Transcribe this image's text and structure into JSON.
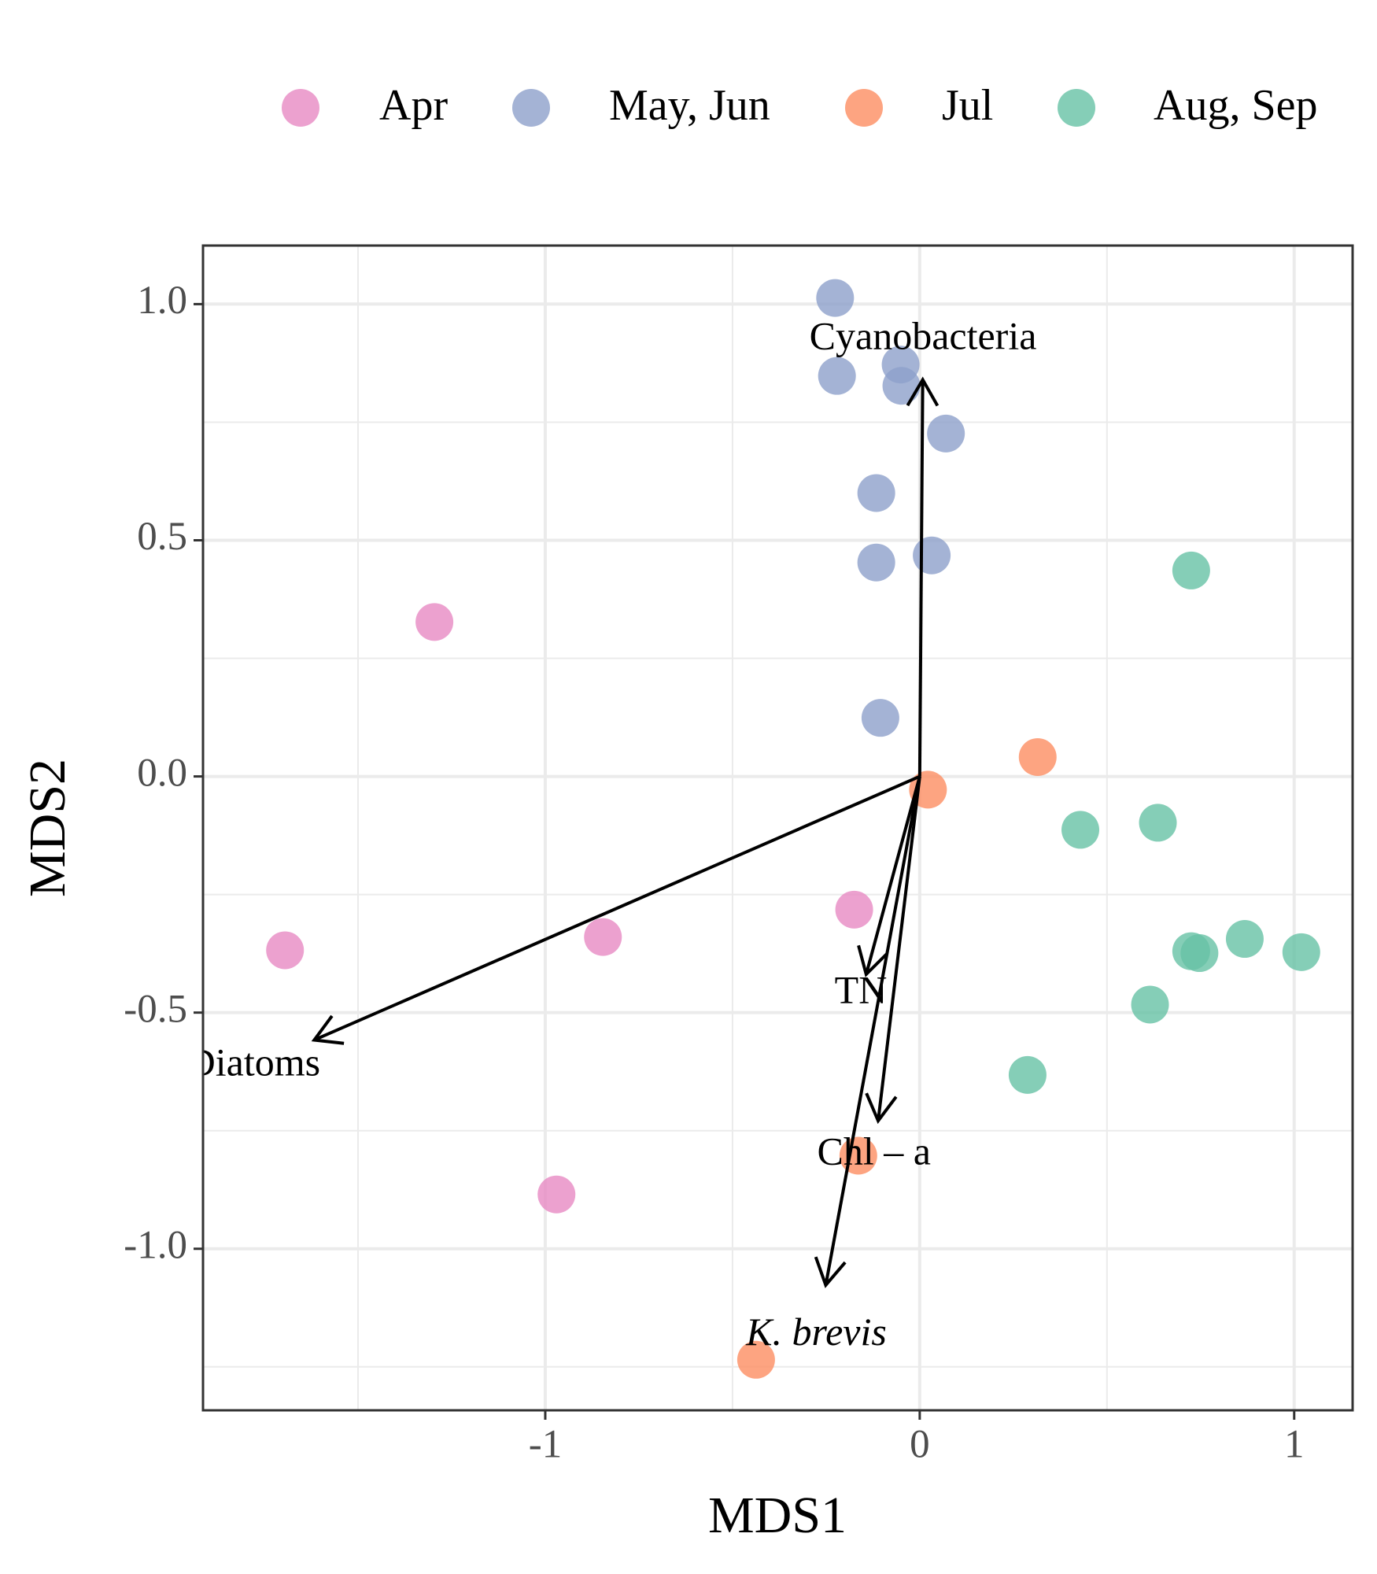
{
  "chart_data": {
    "type": "scatter",
    "x_label": "MDS1",
    "y_label": "MDS2",
    "xlim": [
      -1.914,
      1.156
    ],
    "ylim": [
      -1.342,
      1.124
    ],
    "xticks": [
      -1,
      0,
      1
    ],
    "yticks": [
      {
        "value": -1.0,
        "label": "-1.0"
      },
      {
        "value": -0.5,
        "label": "-0.5"
      },
      {
        "value": 0.0,
        "label": "0.0"
      },
      {
        "value": 0.5,
        "label": "0.5"
      },
      {
        "value": 1.0,
        "label": "1.0"
      }
    ],
    "grid": true,
    "legend": "top",
    "series": [
      {
        "name": "Apr",
        "color": "#e78ac3",
        "x": [
          -1.296,
          -1.695,
          -0.846,
          -0.175,
          -0.97
        ],
        "values": [
          0.327,
          -0.368,
          -0.34,
          -0.282,
          -0.885
        ]
      },
      {
        "name": "May, Jun",
        "color": "#8da0cb",
        "x": [
          -0.226,
          -0.221,
          -0.051,
          -0.049,
          0.07,
          -0.116,
          -0.116,
          0.032,
          -0.105
        ],
        "values": [
          1.013,
          0.848,
          0.872,
          0.827,
          0.726,
          0.6,
          0.453,
          0.468,
          0.124
        ]
      },
      {
        "name": "Jul",
        "color": "#fc8d62",
        "x": [
          0.315,
          0.022,
          -0.164,
          -0.437
        ],
        "values": [
          0.041,
          -0.028,
          -0.803,
          -1.235
        ]
      },
      {
        "name": "Aug, Sep",
        "color": "#66c2a5",
        "x": [
          0.725,
          0.429,
          0.636,
          0.725,
          0.747,
          0.868,
          1.019,
          0.615,
          0.288
        ],
        "values": [
          0.436,
          -0.113,
          -0.098,
          -0.37,
          -0.374,
          -0.344,
          -0.372,
          -0.483,
          -0.632
        ]
      }
    ],
    "vectors": [
      {
        "name": "Cyanobacteria",
        "x": 0.008,
        "y": 0.84
      },
      {
        "name": "Diatoms",
        "x": -1.617,
        "y": -0.558
      },
      {
        "name": "TN",
        "x": -0.143,
        "y": -0.419
      },
      {
        "name": "Chl – a",
        "x": -0.111,
        "y": -0.729
      },
      {
        "name": "K. brevis",
        "x": -0.251,
        "y": -1.077,
        "italic": true
      }
    ]
  }
}
